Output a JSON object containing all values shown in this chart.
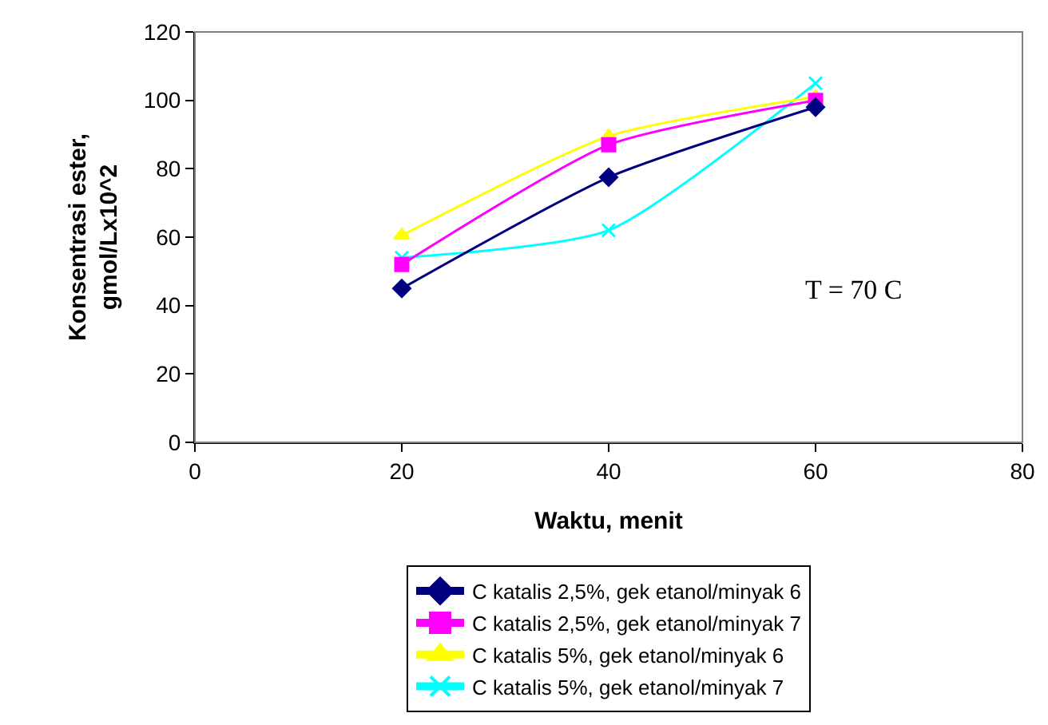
{
  "chart_data": {
    "type": "line",
    "xlabel": "Waktu, menit",
    "ylabel": "Konsentrasi ester,\ngmol/Lx10^2",
    "x": [
      20,
      40,
      60
    ],
    "xlim": [
      0,
      80
    ],
    "xticks": [
      0,
      20,
      40,
      60,
      80
    ],
    "ylim": [
      0,
      120
    ],
    "yticks": [
      0,
      20,
      40,
      60,
      80,
      100,
      120
    ],
    "legend": "bottom",
    "line_style": "solid",
    "annotations": [
      "T = 70 C"
    ],
    "series": [
      {
        "name": "C katalis 2,5%, gek etanol/minyak 6",
        "color": "#000080",
        "marker": "diamond",
        "values": [
          45,
          77.5,
          98
        ]
      },
      {
        "name": "C katalis 2,5%, gek etanol/minyak 7",
        "color": "#ff00ff",
        "marker": "square",
        "values": [
          52,
          87,
          100
        ]
      },
      {
        "name": "C katalis 5%, gek etanol/minyak 6",
        "color": "#ffff00",
        "marker": "triangle",
        "values": [
          60.5,
          89.5,
          101
        ]
      },
      {
        "name": "C katalis 5%, gek etanol/minyak 7",
        "color": "#00ffff",
        "marker": "cross",
        "values": [
          54,
          62,
          105
        ]
      }
    ]
  }
}
